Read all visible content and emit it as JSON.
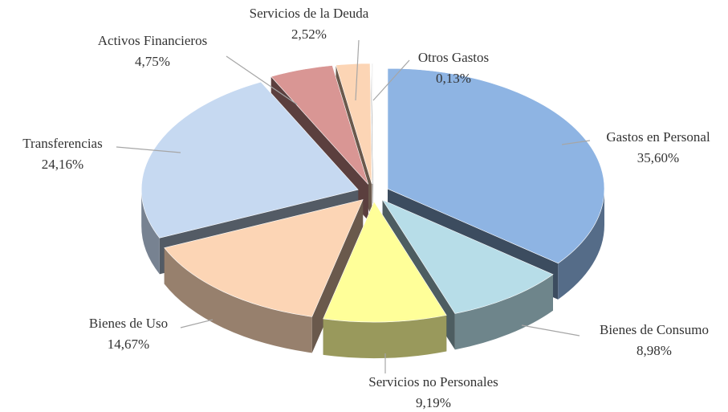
{
  "chart_data": {
    "type": "pie3d",
    "categories": [
      "Gastos en Personal",
      "Bienes de Consumo",
      "Servicios no Personales",
      "Bienes de Uso",
      "Transferencias",
      "Activos Financieros",
      "Servicios de la Deuda",
      "Otros Gastos"
    ],
    "values": [
      35.6,
      8.98,
      9.19,
      14.67,
      24.16,
      4.75,
      2.52,
      0.13
    ],
    "value_labels": [
      "35,60%",
      "8,98%",
      "9,19%",
      "14,67%",
      "24,16%",
      "4,75%",
      "2,52%",
      "0,13%"
    ],
    "colors": [
      "#8eb4e3",
      "#b7dde8",
      "#ffff99",
      "#fcd5b5",
      "#c6d9f1",
      "#d99694",
      "#fcd5b5",
      "#f2f2f2"
    ]
  }
}
